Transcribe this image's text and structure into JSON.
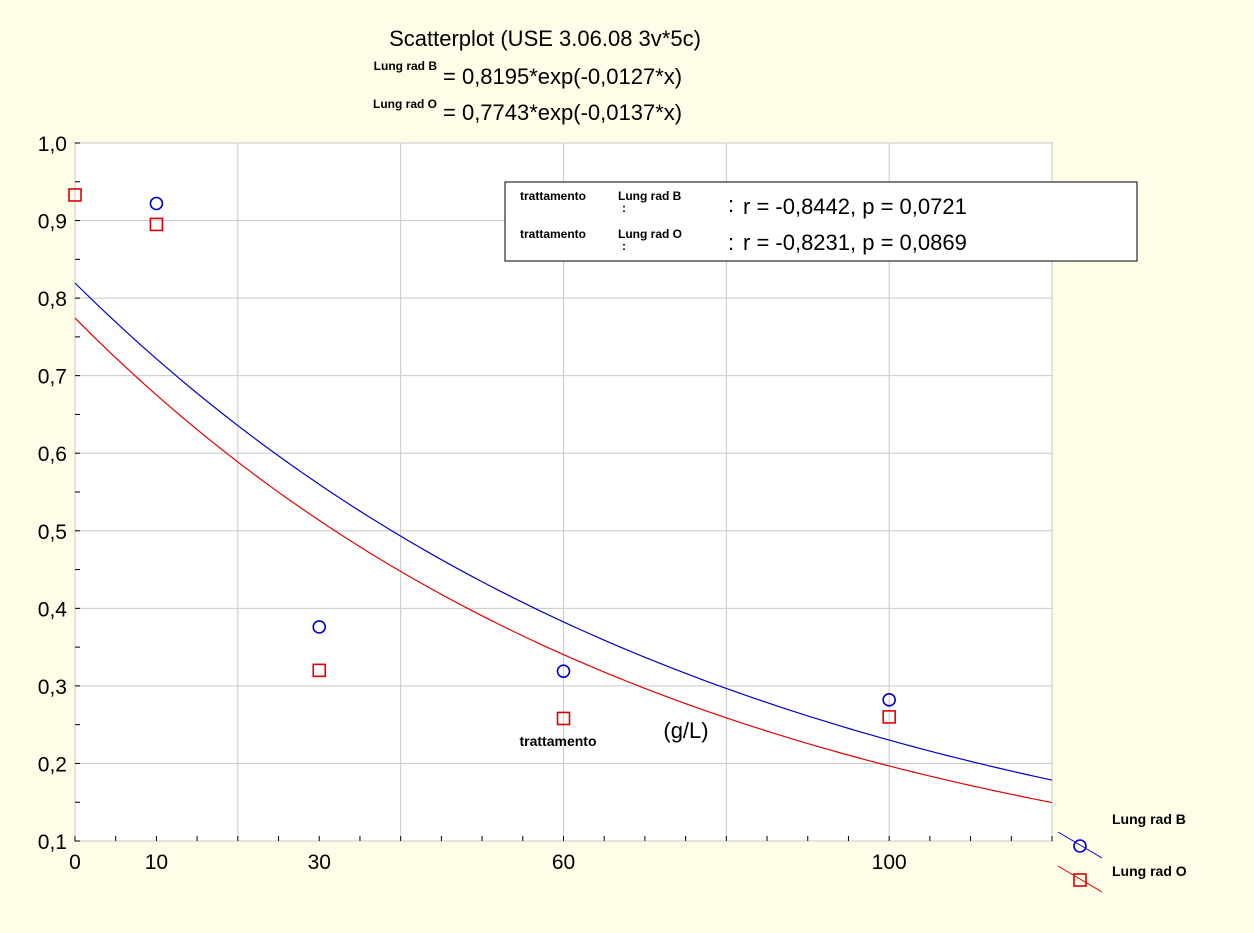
{
  "chart_data": {
    "type": "scatter",
    "title": "Scatterplot (USE 3.06.08 3v*5c)",
    "equations": [
      {
        "series_label": "Lung rad B",
        "text": "= 0,8195*exp(-0,0127*x)",
        "a": 0.8195,
        "b": -0.0127,
        "color": "#0000cc"
      },
      {
        "series_label": "Lung rad O",
        "text": "= 0,7743*exp(-0,0137*x)",
        "a": 0.7743,
        "b": -0.0137,
        "color": "#e00000"
      }
    ],
    "stats": [
      {
        "prefix": "trattamento",
        "series_label": "Lung rad B",
        "colon": ":",
        "text": "r = -0,8442, p = 0,0721"
      },
      {
        "prefix": "trattamento",
        "series_label": "Lung rad O",
        "colon": ":",
        "text": "r = -0,8231, p = 0,0869"
      }
    ],
    "xlabel": "trattamento",
    "xunit": "(g/L)",
    "xlim": [
      0,
      120
    ],
    "ylim": [
      0.1,
      1.0
    ],
    "x_tick_labels": [
      {
        "value": 0,
        "label": "0"
      },
      {
        "value": 10,
        "label": "10"
      },
      {
        "value": 30,
        "label": "30"
      },
      {
        "value": 60,
        "label": "60"
      },
      {
        "value": 100,
        "label": "100"
      }
    ],
    "y_tick_labels": [
      {
        "value": 0.1,
        "label": "0,1"
      },
      {
        "value": 0.2,
        "label": "0,2"
      },
      {
        "value": 0.3,
        "label": "0,3"
      },
      {
        "value": 0.4,
        "label": "0,4"
      },
      {
        "value": 0.5,
        "label": "0,5"
      },
      {
        "value": 0.6,
        "label": "0,6"
      },
      {
        "value": 0.7,
        "label": "0,7"
      },
      {
        "value": 0.8,
        "label": "0,8"
      },
      {
        "value": 0.9,
        "label": "0,9"
      },
      {
        "value": 1.0,
        "label": "1,0"
      }
    ],
    "grid_x": [
      0,
      20,
      40,
      60,
      80,
      100,
      120
    ],
    "grid_y": [
      0.1,
      0.2,
      0.3,
      0.4,
      0.5,
      0.6,
      0.7,
      0.8,
      0.9,
      1.0
    ],
    "grid": true,
    "legend_position": "bottom-right",
    "series": [
      {
        "name": "Lung rad B",
        "marker": "circle",
        "color": "#0000cc",
        "points": [
          {
            "x": 10,
            "y": 0.922
          },
          {
            "x": 30,
            "y": 0.376
          },
          {
            "x": 60,
            "y": 0.319
          },
          {
            "x": 100,
            "y": 0.282
          }
        ]
      },
      {
        "name": "Lung rad O",
        "marker": "square",
        "color": "#e00000",
        "points": [
          {
            "x": 0,
            "y": 0.933
          },
          {
            "x": 10,
            "y": 0.895
          },
          {
            "x": 30,
            "y": 0.32
          },
          {
            "x": 60,
            "y": 0.258
          },
          {
            "x": 100,
            "y": 0.26
          }
        ]
      }
    ]
  }
}
